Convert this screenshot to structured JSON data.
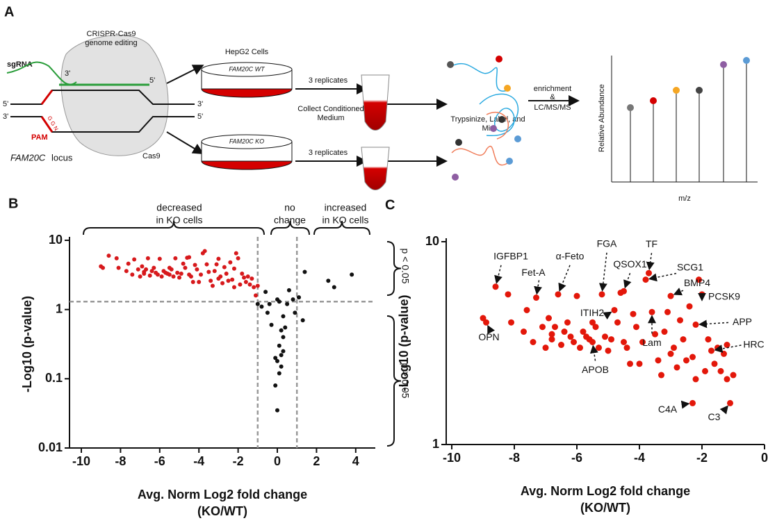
{
  "panel_a": {
    "label": "A",
    "crispr_title": [
      "CRISPR-Cas9",
      "genome editing"
    ],
    "sgrna": "sgRNA",
    "three_prime": "3'",
    "five_prime": "5'",
    "pam": "PAM",
    "pam_seq": "G G N",
    "locus_gene": "FAM20C",
    "locus_word": "locus",
    "cas9": "Cas9",
    "cells_title": "HepG2 Cells",
    "wt_dish": "FAM20C WT",
    "ko_dish": "FAM20C KO",
    "replicates": "3 replicates",
    "collect": [
      "Collect Conditioned",
      "Medium"
    ],
    "trypsinize": "Trypsinize, Label, and",
    "mix": "Mix",
    "enrichment": [
      "enrichment",
      "&",
      "LC/MS/MS"
    ],
    "ylabel": "Relative Abundance",
    "xlabel": "m/z"
  },
  "chart_data": [
    {
      "type": "scatter",
      "panel": "B",
      "ylabel": "-Log10 (p-value)",
      "xlabel": [
        "Avg. Norm Log2 fold change",
        "(KO/WT)"
      ],
      "xlim": [
        -10,
        5
      ],
      "xticks": [
        -10,
        -8,
        -6,
        -4,
        -2,
        0,
        2,
        4
      ],
      "ylim": [
        0.01,
        10
      ],
      "yticks": [
        0.01,
        0.1,
        1,
        10
      ],
      "log_y": true,
      "thresholds": {
        "x": [
          -1,
          1
        ],
        "y": 1.3
      },
      "annotations": [
        [
          "decreased",
          "in KO cells"
        ],
        [
          "no",
          "change"
        ],
        [
          "increased",
          "in KO cells"
        ],
        "p < 0.05",
        "p > 0.05"
      ],
      "series": [
        {
          "color": "#d7191c",
          "x": [
            -9.0,
            -8.9,
            -8.6,
            -8.2,
            -8.1,
            -7.7,
            -7.6,
            -7.4,
            -7.3,
            -7.1,
            -7.0,
            -6.9,
            -6.8,
            -6.7,
            -6.6,
            -6.5,
            -6.4,
            -6.3,
            -6.2,
            -6.1,
            -6.0,
            -5.9,
            -5.8,
            -5.7,
            -5.6,
            -5.5,
            -5.4,
            -5.3,
            -5.2,
            -5.1,
            -5.0,
            -4.9,
            -4.8,
            -4.7,
            -4.6,
            -4.5,
            -4.4,
            -4.3,
            -4.2,
            -4.1,
            -4.0,
            -3.9,
            -3.8,
            -3.7,
            -3.6,
            -3.5,
            -3.4,
            -3.3,
            -3.2,
            -3.1,
            -3.0,
            -2.9,
            -2.8,
            -2.7,
            -2.6,
            -2.5,
            -2.4,
            -2.3,
            -2.2,
            -2.1,
            -2.0,
            -1.9,
            -1.8,
            -1.7,
            -1.6,
            -1.5,
            -1.4,
            -1.3,
            -1.2,
            -1.1,
            -1.0,
            -4.5,
            -6.8,
            -5.5,
            -3.0,
            -2.2
          ],
          "values": [
            4.2,
            4.0,
            6.0,
            5.5,
            4.0,
            3.6,
            4.6,
            3.2,
            5.3,
            3.8,
            3.0,
            4.2,
            3.5,
            3.8,
            5.5,
            3.1,
            3.6,
            4.0,
            3.4,
            3.2,
            5.4,
            3.0,
            3.6,
            3.4,
            3.3,
            3.2,
            3.8,
            3.0,
            5.5,
            3.4,
            2.9,
            3.3,
            4.6,
            4.0,
            5.6,
            5.7,
            3.0,
            2.5,
            4.4,
            3.8,
            2.5,
            3.2,
            6.5,
            7.0,
            4.5,
            3.5,
            2.6,
            2.2,
            3.6,
            4.5,
            5.4,
            3.0,
            2.4,
            4.1,
            3.3,
            2.6,
            4.8,
            2.7,
            3.9,
            6.5,
            5.5,
            2.3,
            3.3,
            2.9,
            2.5,
            3.0,
            2.3,
            2.8,
            2.1,
            1.6,
            2.2,
            3.2,
            3.3,
            4.0,
            2.8,
            2.1
          ]
        },
        {
          "color": "#111111",
          "x": [
            -1.0,
            -0.8,
            -0.6,
            -0.5,
            -0.4,
            -0.3,
            0.0,
            0.1,
            0.2,
            0.1,
            0.3,
            -0.1,
            0.0,
            0.2,
            0.1,
            -0.1,
            0.3,
            0.4,
            0.5,
            0.6,
            0.0,
            0.2,
            0.8,
            1.1,
            1.3,
            1.4,
            2.6,
            2.9,
            3.8,
            0.9,
            0.3
          ],
          "values": [
            1.2,
            1.1,
            1.8,
            0.9,
            1.2,
            0.6,
            1.4,
            1.3,
            0.5,
            0.3,
            0.25,
            0.2,
            0.18,
            0.15,
            0.12,
            0.08,
            0.4,
            0.55,
            1.2,
            1.9,
            0.035,
            0.22,
            1.4,
            1.5,
            0.7,
            3.5,
            2.6,
            2.1,
            3.2,
            0.9,
            0.8
          ]
        }
      ]
    },
    {
      "type": "scatter",
      "panel": "C",
      "ylabel": "-Log10 (p-value)",
      "xlabel": [
        "Avg. Norm Log2 fold change",
        "(KO/WT)"
      ],
      "xlim": [
        -10,
        0
      ],
      "xticks": [
        -10,
        -8,
        -6,
        -4,
        -2,
        0
      ],
      "ylim": [
        1,
        10
      ],
      "yticks": [
        1,
        10
      ],
      "log_y": true,
      "series": [
        {
          "color": "#e3170a",
          "x": [
            -9.0,
            -8.9,
            -8.6,
            -8.2,
            -8.1,
            -7.7,
            -7.6,
            -7.4,
            -7.3,
            -7.1,
            -7.0,
            -6.9,
            -6.8,
            -6.7,
            -6.6,
            -6.5,
            -6.4,
            -6.3,
            -6.2,
            -6.1,
            -6.0,
            -5.9,
            -5.8,
            -5.7,
            -5.6,
            -5.5,
            -5.4,
            -5.3,
            -5.2,
            -5.1,
            -5.0,
            -4.9,
            -4.8,
            -4.7,
            -4.6,
            -4.5,
            -4.4,
            -4.3,
            -4.2,
            -4.1,
            -4.0,
            -3.9,
            -3.8,
            -3.7,
            -3.6,
            -3.5,
            -3.4,
            -3.3,
            -3.2,
            -3.1,
            -3.0,
            -2.9,
            -2.8,
            -2.7,
            -2.6,
            -2.5,
            -2.4,
            -2.3,
            -2.2,
            -2.1,
            -2.0,
            -1.9,
            -1.8,
            -1.7,
            -1.6,
            -1.5,
            -1.4,
            -1.3,
            -1.2,
            -1.1,
            -1.0,
            -4.5,
            -6.8,
            -5.5,
            -3.0,
            -2.2,
            -2.3,
            -1.2
          ],
          "values": [
            4.2,
            4.0,
            6.0,
            5.5,
            4.0,
            3.6,
            4.6,
            3.2,
            5.3,
            3.8,
            3.0,
            4.2,
            3.5,
            3.8,
            5.5,
            3.1,
            3.6,
            4.0,
            3.4,
            3.2,
            5.4,
            3.0,
            3.6,
            3.4,
            3.3,
            3.2,
            3.8,
            3.0,
            5.5,
            3.4,
            2.9,
            3.3,
            4.6,
            4.0,
            5.6,
            5.7,
            3.0,
            2.5,
            4.4,
            3.8,
            2.5,
            3.2,
            6.5,
            7.0,
            4.5,
            3.5,
            2.6,
            2.2,
            3.6,
            4.5,
            5.4,
            3.0,
            2.4,
            4.1,
            3.3,
            2.6,
            4.8,
            2.7,
            3.9,
            6.5,
            5.5,
            2.3,
            3.3,
            2.9,
            2.5,
            3.0,
            2.3,
            2.8,
            2.1,
            1.6,
            2.2,
            3.2,
            3.3,
            4.0,
            2.8,
            2.1,
            1.6,
            3.1
          ]
        }
      ],
      "annotations": [
        {
          "text": "IGFBP1",
          "x": -8.6,
          "y": 6.0
        },
        {
          "text": "OPN",
          "x": -8.9,
          "y": 4.0
        },
        {
          "text": "Fet-A",
          "x": -7.3,
          "y": 5.3
        },
        {
          "text": "α-Feto",
          "x": -6.6,
          "y": 5.5
        },
        {
          "text": "FGA",
          "x": -5.2,
          "y": 5.5
        },
        {
          "text": "QSOX1",
          "x": -4.5,
          "y": 5.7
        },
        {
          "text": "TF",
          "x": -3.7,
          "y": 7.0
        },
        {
          "text": "SCG1",
          "x": -3.8,
          "y": 6.5
        },
        {
          "text": "BMP4",
          "x": -3.0,
          "y": 5.4
        },
        {
          "text": "PCSK9",
          "x": -2.0,
          "y": 5.5
        },
        {
          "text": "APP",
          "x": -2.2,
          "y": 3.9
        },
        {
          "text": "HRC",
          "x": -1.7,
          "y": 2.9
        },
        {
          "text": "ITIH2",
          "x": -4.8,
          "y": 4.6
        },
        {
          "text": "Lam",
          "x": -3.6,
          "y": 4.5
        },
        {
          "text": "APOB",
          "x": -5.5,
          "y": 3.2
        },
        {
          "text": "C4A",
          "x": -2.3,
          "y": 1.6
        },
        {
          "text": "C3",
          "x": -1.1,
          "y": 1.6
        }
      ]
    }
  ]
}
